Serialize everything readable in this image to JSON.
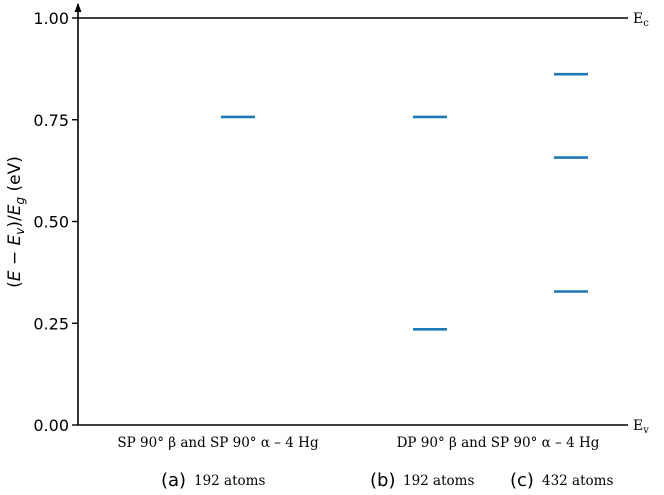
{
  "chart_data": {
    "type": "scatter",
    "ylabel": "(E − E_v)/E_g (eV)",
    "ylim": [
      0,
      1
    ],
    "yticks": [
      "0.00",
      "0.25",
      "0.50",
      "0.75",
      "1.00"
    ],
    "y_ticks_values": [
      0,
      0.25,
      0.5,
      0.75,
      1.0
    ],
    "ref_lines": [
      {
        "label": "E",
        "sub": "c",
        "y": 1.0
      },
      {
        "label": "E",
        "sub": "v",
        "y": 0.0
      }
    ],
    "group_labels": [
      "SP 90° β and SP 90° α – 4 Hg",
      "DP 90° β and SP 90° α – 4 Hg"
    ],
    "panels": [
      {
        "letter": "(a)",
        "atoms": "192 atoms",
        "levels": [
          0.757
        ]
      },
      {
        "letter": "(b)",
        "atoms": "192 atoms",
        "levels": [
          0.757,
          0.235
        ]
      },
      {
        "letter": "(c)",
        "atoms": "432 atoms",
        "levels": [
          0.862,
          0.657,
          0.328
        ]
      }
    ],
    "series_color": "#1f77b4",
    "grid": false
  }
}
